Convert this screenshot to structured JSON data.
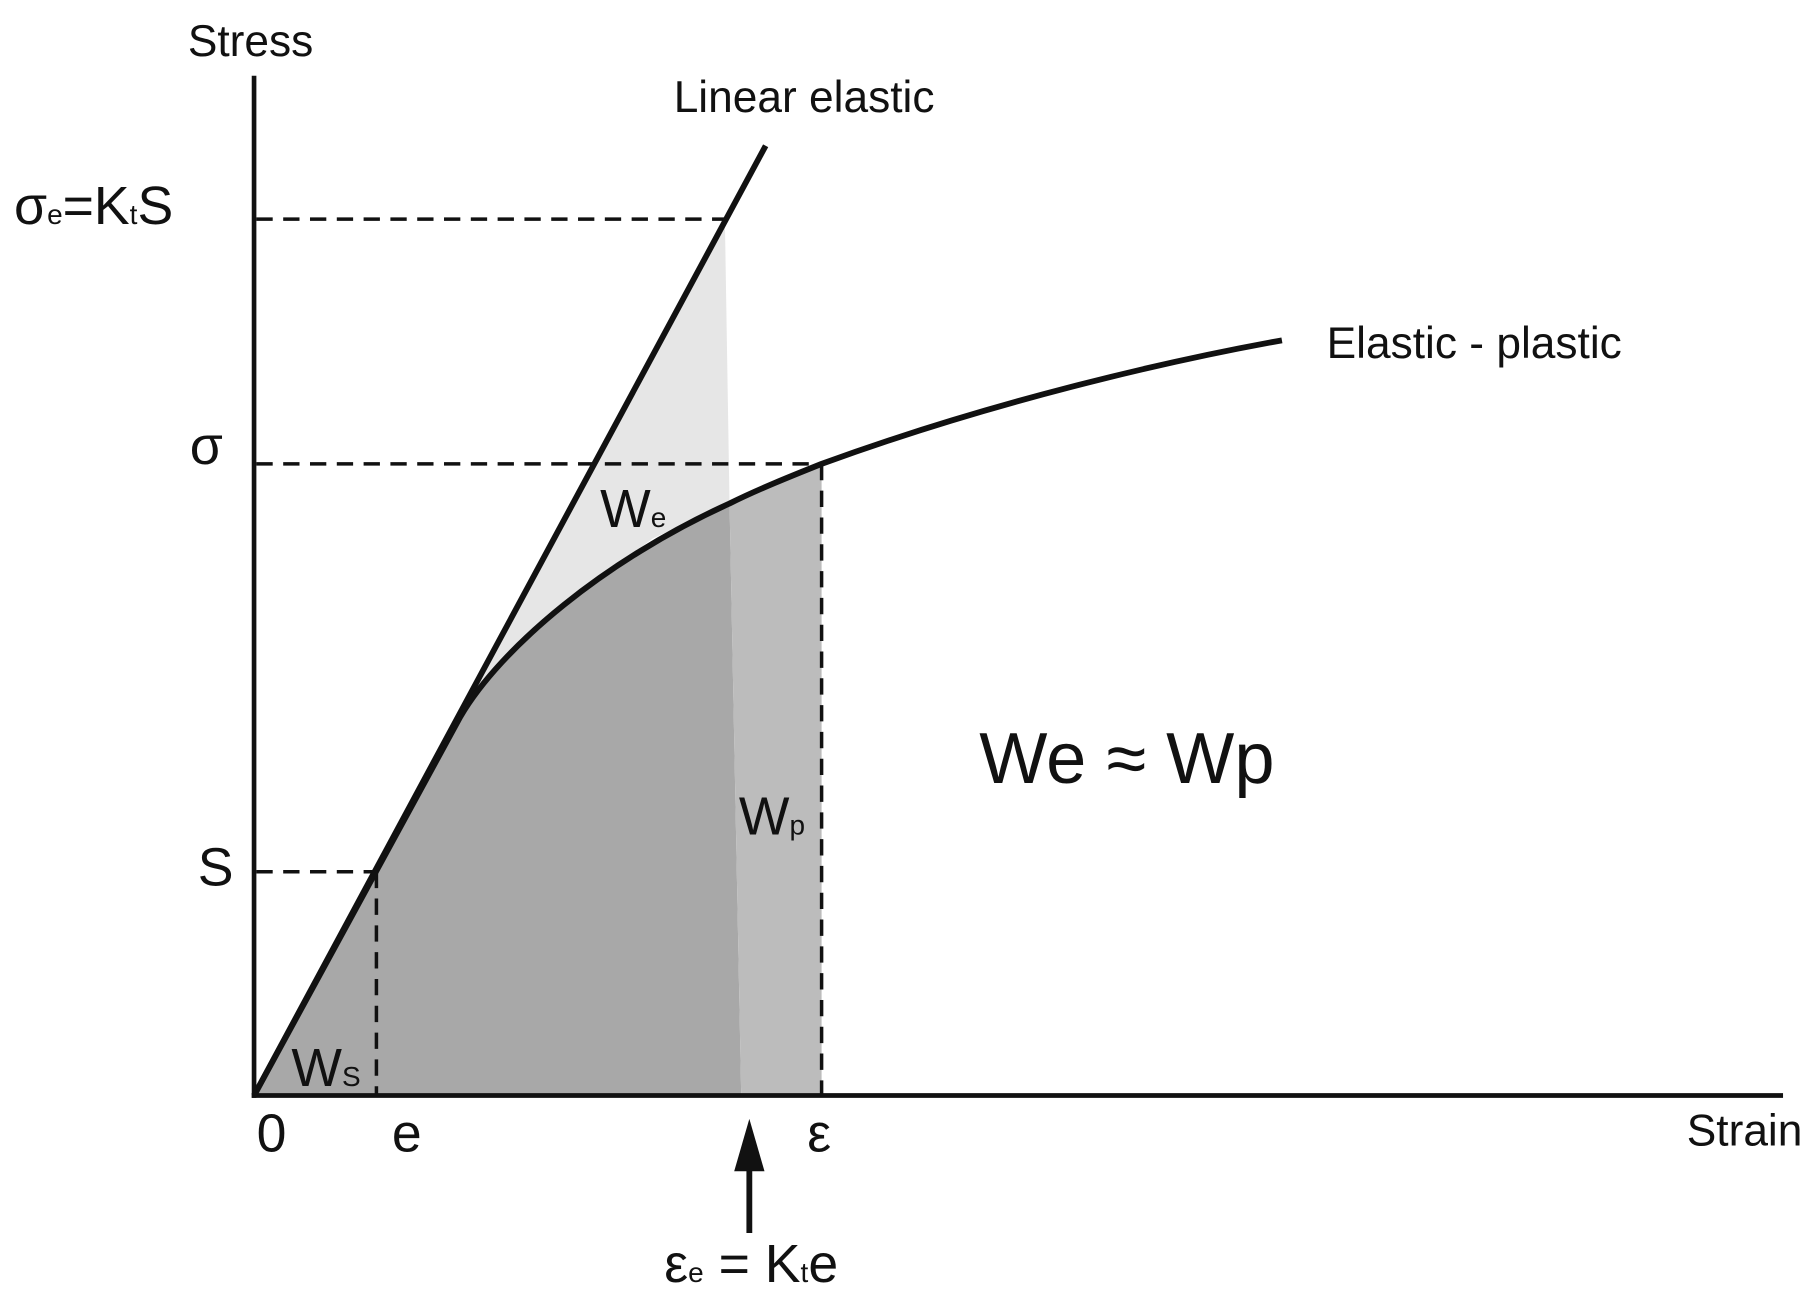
{
  "axes": {
    "y_label": "Stress",
    "x_label": "Strain"
  },
  "curves": {
    "linear": "Linear elastic",
    "elastic_plastic": "Elastic - plastic"
  },
  "y_marks": {
    "sigma_e": [
      "σ",
      "e",
      "=K",
      "t",
      "S"
    ],
    "sigma": "σ",
    "S": "S"
  },
  "x_marks": {
    "origin": "0",
    "e": "e",
    "epsilon": "ε",
    "epsilon_e": [
      "ε",
      "e",
      " = K",
      "t",
      "e"
    ]
  },
  "areas": {
    "We": [
      "W",
      "e"
    ],
    "Wp": [
      "W",
      "p"
    ],
    "Ws": [
      "W",
      "S"
    ]
  },
  "equation": "We ≈ Wp"
}
